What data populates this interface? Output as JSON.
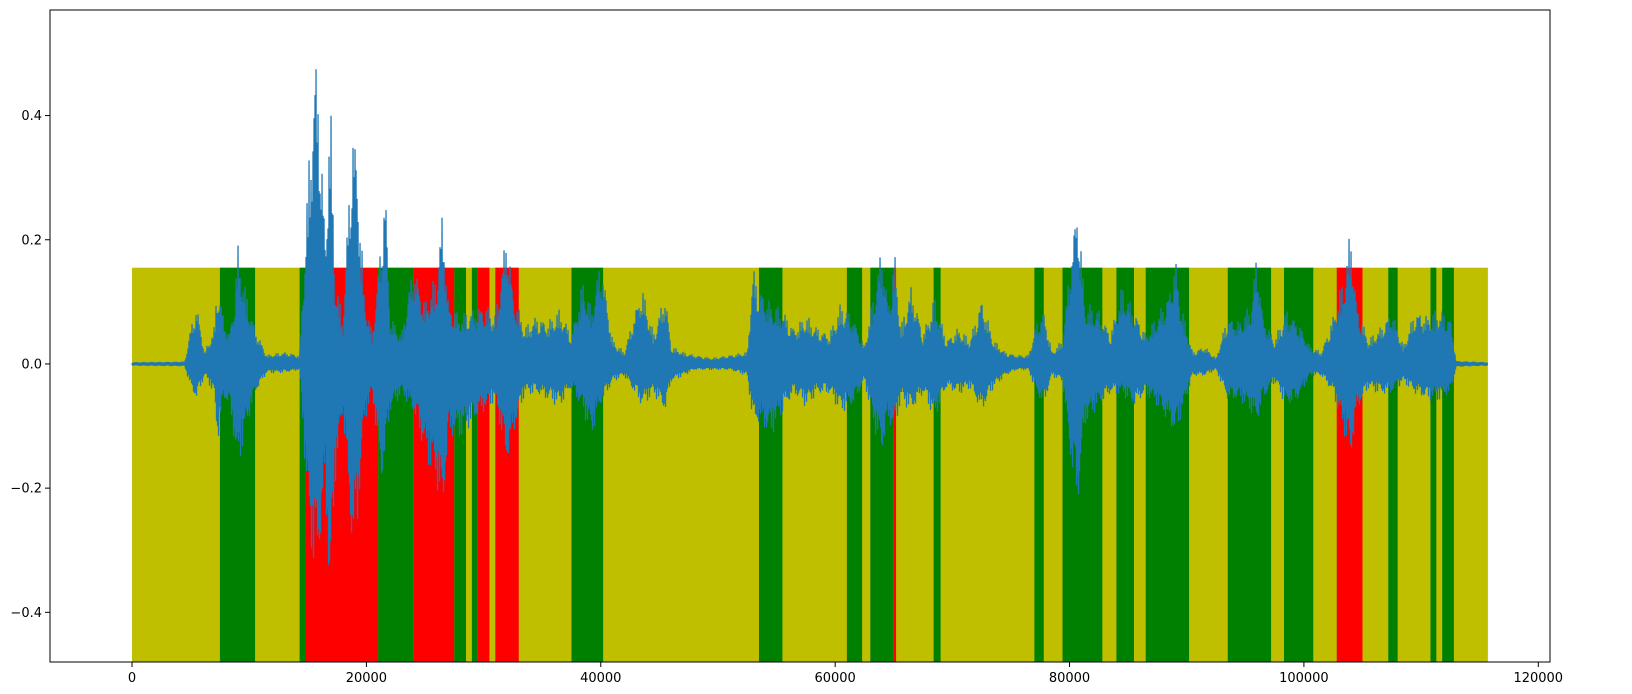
{
  "chart_data": {
    "type": "area",
    "title": "",
    "xlabel": "",
    "ylabel": "",
    "xlim": [
      -7000,
      121000
    ],
    "ylim": [
      -0.48,
      0.57
    ],
    "xticks": [
      0,
      20000,
      40000,
      60000,
      80000,
      100000,
      120000
    ],
    "xtick_labels": [
      "0",
      "20000",
      "40000",
      "60000",
      "80000",
      "100000",
      "120000"
    ],
    "yticks": [
      -0.4,
      -0.2,
      0.0,
      0.2,
      0.4
    ],
    "ytick_labels": [
      "−0.4",
      "−0.2",
      "0.0",
      "0.2",
      "0.4"
    ],
    "grid": false,
    "colors": {
      "background_segment": "#bfbf00",
      "green_segment": "#008000",
      "red_segment": "#ff0000",
      "waveform": "#1f77b4"
    },
    "segment_top": 0.155,
    "segment_range": [
      0,
      115700
    ],
    "segments": [
      {
        "x0": 7500,
        "x1": 10500,
        "color": "green"
      },
      {
        "x0": 14300,
        "x1": 14800,
        "color": "green"
      },
      {
        "x0": 14800,
        "x1": 21000,
        "color": "red"
      },
      {
        "x0": 21000,
        "x1": 24000,
        "color": "green"
      },
      {
        "x0": 24000,
        "x1": 27500,
        "color": "red"
      },
      {
        "x0": 27500,
        "x1": 28500,
        "color": "green"
      },
      {
        "x0": 29000,
        "x1": 29500,
        "color": "green"
      },
      {
        "x0": 29500,
        "x1": 30500,
        "color": "red"
      },
      {
        "x0": 31000,
        "x1": 33000,
        "color": "red"
      },
      {
        "x0": 37500,
        "x1": 40200,
        "color": "green"
      },
      {
        "x0": 53500,
        "x1": 55500,
        "color": "green"
      },
      {
        "x0": 61000,
        "x1": 62300,
        "color": "green"
      },
      {
        "x0": 63000,
        "x1": 65000,
        "color": "green"
      },
      {
        "x0": 65000,
        "x1": 65200,
        "color": "red"
      },
      {
        "x0": 68400,
        "x1": 69000,
        "color": "green"
      },
      {
        "x0": 77000,
        "x1": 77800,
        "color": "green"
      },
      {
        "x0": 79400,
        "x1": 82800,
        "color": "green"
      },
      {
        "x0": 84000,
        "x1": 85500,
        "color": "green"
      },
      {
        "x0": 86500,
        "x1": 90200,
        "color": "green"
      },
      {
        "x0": 93500,
        "x1": 97200,
        "color": "green"
      },
      {
        "x0": 98300,
        "x1": 100800,
        "color": "green"
      },
      {
        "x0": 102800,
        "x1": 105000,
        "color": "red"
      },
      {
        "x0": 107200,
        "x1": 108000,
        "color": "green"
      },
      {
        "x0": 110800,
        "x1": 111300,
        "color": "green"
      },
      {
        "x0": 111800,
        "x1": 112800,
        "color": "green"
      }
    ],
    "series": [
      {
        "color": "#1f77b4",
        "envelope": [
          [
            0,
            0.003,
            -0.003
          ],
          [
            4500,
            0.004,
            -0.004
          ],
          [
            5000,
            0.06,
            -0.04
          ],
          [
            5500,
            0.1,
            -0.06
          ],
          [
            6200,
            0.02,
            -0.02
          ],
          [
            7000,
            0.06,
            -0.05
          ],
          [
            7300,
            0.14,
            -0.13
          ],
          [
            7800,
            0.08,
            -0.06
          ],
          [
            8300,
            0.05,
            -0.07
          ],
          [
            8800,
            0.12,
            -0.14
          ],
          [
            9000,
            0.2,
            -0.18
          ],
          [
            9600,
            0.13,
            -0.12
          ],
          [
            10500,
            0.06,
            -0.05
          ],
          [
            11500,
            0.015,
            -0.015
          ],
          [
            13000,
            0.02,
            -0.015
          ],
          [
            14300,
            0.015,
            -0.01
          ],
          [
            15000,
            0.3,
            -0.25
          ],
          [
            15600,
            0.52,
            -0.36
          ],
          [
            16000,
            0.45,
            -0.32
          ],
          [
            16500,
            0.2,
            -0.2
          ],
          [
            16900,
            0.47,
            -0.43
          ],
          [
            17300,
            0.15,
            -0.2
          ],
          [
            18000,
            0.07,
            -0.08
          ],
          [
            18800,
            0.41,
            -0.32
          ],
          [
            19200,
            0.35,
            -0.28
          ],
          [
            19800,
            0.12,
            -0.1
          ],
          [
            20500,
            0.05,
            -0.05
          ],
          [
            21300,
            0.22,
            -0.2
          ],
          [
            21600,
            0.31,
            -0.16
          ],
          [
            22000,
            0.08,
            -0.08
          ],
          [
            23000,
            0.05,
            -0.05
          ],
          [
            24000,
            0.17,
            -0.08
          ],
          [
            25000,
            0.1,
            -0.15
          ],
          [
            26000,
            0.15,
            -0.2
          ],
          [
            26500,
            0.26,
            -0.26
          ],
          [
            27000,
            0.1,
            -0.12
          ],
          [
            28000,
            0.08,
            -0.12
          ],
          [
            29000,
            0.09,
            -0.1
          ],
          [
            30000,
            0.1,
            -0.08
          ],
          [
            31000,
            0.08,
            -0.06
          ],
          [
            32000,
            0.23,
            -0.17
          ],
          [
            32500,
            0.12,
            -0.12
          ],
          [
            33500,
            0.06,
            -0.05
          ],
          [
            34500,
            0.08,
            -0.05
          ],
          [
            35500,
            0.07,
            -0.06
          ],
          [
            36500,
            0.09,
            -0.07
          ],
          [
            37500,
            0.05,
            -0.04
          ],
          [
            38500,
            0.14,
            -0.08
          ],
          [
            39200,
            0.09,
            -0.12
          ],
          [
            40000,
            0.18,
            -0.07
          ],
          [
            41000,
            0.04,
            -0.03
          ],
          [
            42000,
            0.02,
            -0.02
          ],
          [
            43500,
            0.13,
            -0.07
          ],
          [
            44500,
            0.05,
            -0.05
          ],
          [
            45500,
            0.12,
            -0.08
          ],
          [
            46000,
            0.03,
            -0.03
          ],
          [
            47000,
            0.02,
            -0.02
          ],
          [
            48000,
            0.015,
            -0.01
          ],
          [
            49500,
            0.01,
            -0.01
          ],
          [
            51000,
            0.015,
            -0.01
          ],
          [
            52500,
            0.02,
            -0.02
          ],
          [
            53000,
            0.16,
            -0.1
          ],
          [
            53500,
            0.13,
            -0.1
          ],
          [
            54500,
            0.1,
            -0.12
          ],
          [
            55500,
            0.09,
            -0.08
          ],
          [
            56500,
            0.06,
            -0.05
          ],
          [
            57500,
            0.08,
            -0.07
          ],
          [
            58500,
            0.06,
            -0.05
          ],
          [
            59500,
            0.05,
            -0.05
          ],
          [
            60500,
            0.1,
            -0.08
          ],
          [
            61500,
            0.08,
            -0.07
          ],
          [
            62500,
            0.03,
            -0.03
          ],
          [
            63500,
            0.14,
            -0.12
          ],
          [
            64000,
            0.2,
            -0.15
          ],
          [
            64500,
            0.1,
            -0.1
          ],
          [
            65100,
            0.18,
            -0.11
          ],
          [
            65600,
            0.06,
            -0.06
          ],
          [
            66500,
            0.13,
            -0.08
          ],
          [
            67500,
            0.05,
            -0.05
          ],
          [
            68500,
            0.11,
            -0.09
          ],
          [
            69500,
            0.04,
            -0.04
          ],
          [
            70500,
            0.06,
            -0.05
          ],
          [
            71500,
            0.04,
            -0.04
          ],
          [
            72500,
            0.11,
            -0.08
          ],
          [
            73500,
            0.04,
            -0.04
          ],
          [
            74500,
            0.02,
            -0.02
          ],
          [
            75500,
            0.015,
            -0.01
          ],
          [
            76500,
            0.015,
            -0.01
          ],
          [
            77200,
            0.07,
            -0.05
          ],
          [
            77800,
            0.09,
            -0.07
          ],
          [
            78500,
            0.02,
            -0.02
          ],
          [
            79400,
            0.04,
            -0.03
          ],
          [
            80200,
            0.2,
            -0.18
          ],
          [
            80700,
            0.28,
            -0.24
          ],
          [
            81300,
            0.1,
            -0.1
          ],
          [
            82500,
            0.09,
            -0.07
          ],
          [
            83500,
            0.05,
            -0.05
          ],
          [
            84500,
            0.13,
            -0.05
          ],
          [
            85500,
            0.09,
            -0.07
          ],
          [
            86500,
            0.05,
            -0.05
          ],
          [
            87500,
            0.08,
            -0.07
          ],
          [
            88500,
            0.12,
            -0.1
          ],
          [
            89000,
            0.18,
            -0.12
          ],
          [
            89500,
            0.1,
            -0.09
          ],
          [
            90500,
            0.02,
            -0.02
          ],
          [
            91500,
            0.03,
            -0.02
          ],
          [
            92500,
            0.01,
            -0.01
          ],
          [
            93500,
            0.08,
            -0.06
          ],
          [
            94500,
            0.07,
            -0.06
          ],
          [
            95500,
            0.1,
            -0.08
          ],
          [
            96000,
            0.19,
            -0.1
          ],
          [
            96500,
            0.08,
            -0.06
          ],
          [
            97500,
            0.04,
            -0.03
          ],
          [
            98500,
            0.09,
            -0.07
          ],
          [
            99500,
            0.07,
            -0.06
          ],
          [
            100500,
            0.03,
            -0.02
          ],
          [
            101500,
            0.02,
            -0.02
          ],
          [
            102500,
            0.08,
            -0.05
          ],
          [
            103500,
            0.15,
            -0.12
          ],
          [
            104000,
            0.23,
            -0.16
          ],
          [
            104500,
            0.1,
            -0.08
          ],
          [
            105500,
            0.04,
            -0.04
          ],
          [
            106500,
            0.06,
            -0.05
          ],
          [
            107500,
            0.09,
            -0.05
          ],
          [
            108500,
            0.03,
            -0.03
          ],
          [
            109500,
            0.09,
            -0.05
          ],
          [
            110500,
            0.08,
            -0.06
          ],
          [
            111500,
            0.09,
            -0.06
          ],
          [
            112500,
            0.08,
            -0.05
          ],
          [
            113000,
            0.005,
            -0.005
          ],
          [
            115700,
            0.003,
            -0.003
          ]
        ]
      }
    ]
  }
}
